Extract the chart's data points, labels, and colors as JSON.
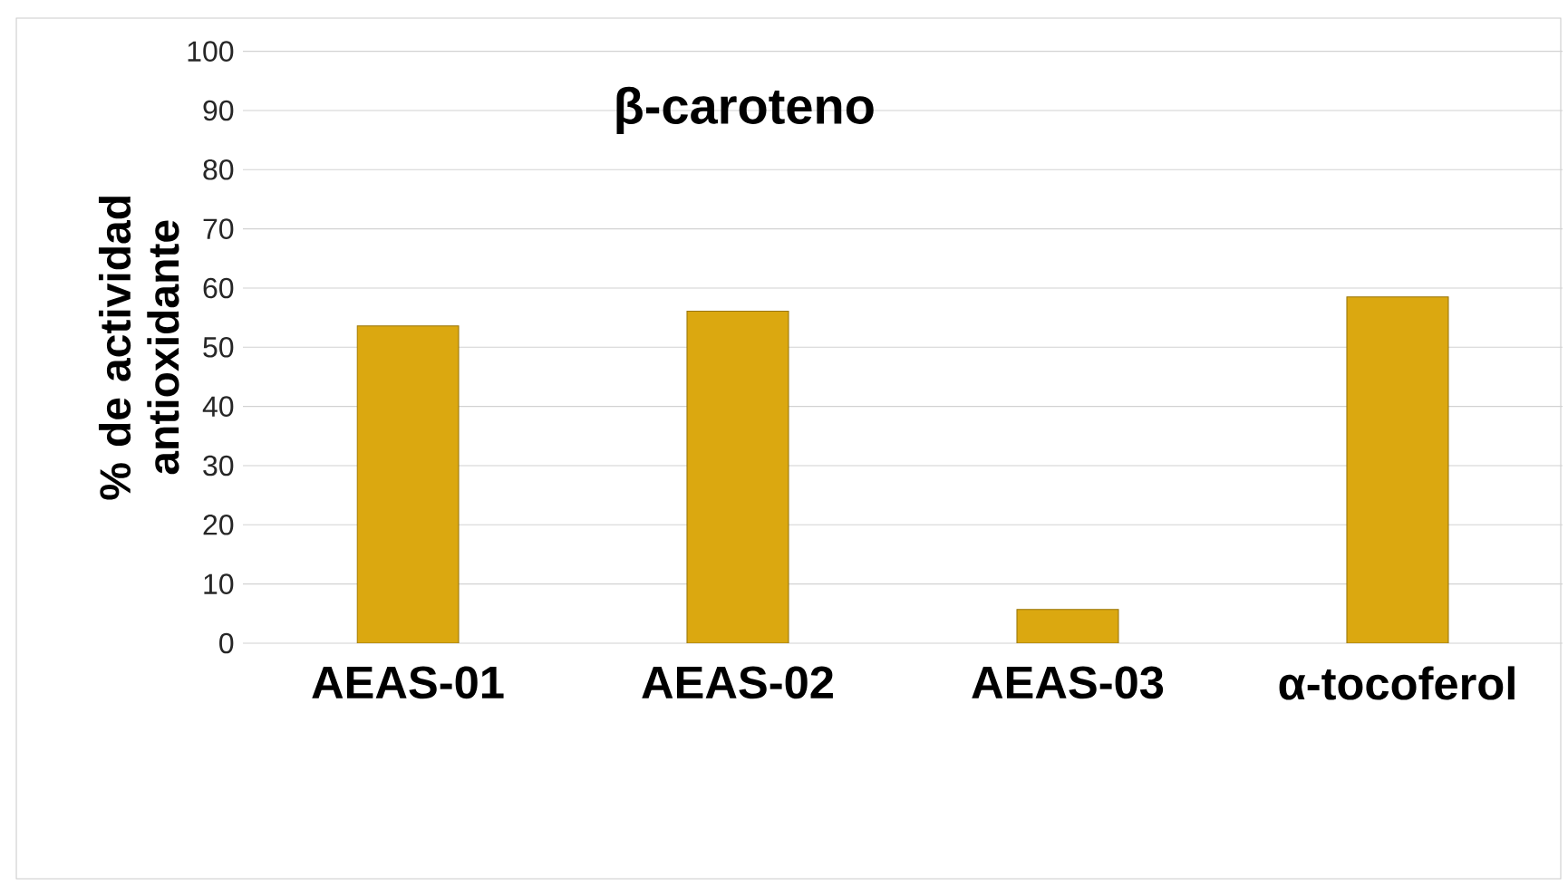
{
  "chart_data": {
    "type": "bar",
    "title": "β-caroteno",
    "ylabel": "% de actividad antioxidante",
    "categories": [
      "AEAS-01",
      "AEAS-02",
      "AEAS-03",
      "α-tocoferol"
    ],
    "values": [
      53.6,
      56.1,
      5.7,
      58.5
    ],
    "color": "#dba810",
    "ylim": [
      0,
      100
    ],
    "yticks": [
      0,
      10,
      20,
      30,
      40,
      50,
      60,
      70,
      80,
      90,
      100
    ],
    "grid": "y"
  }
}
